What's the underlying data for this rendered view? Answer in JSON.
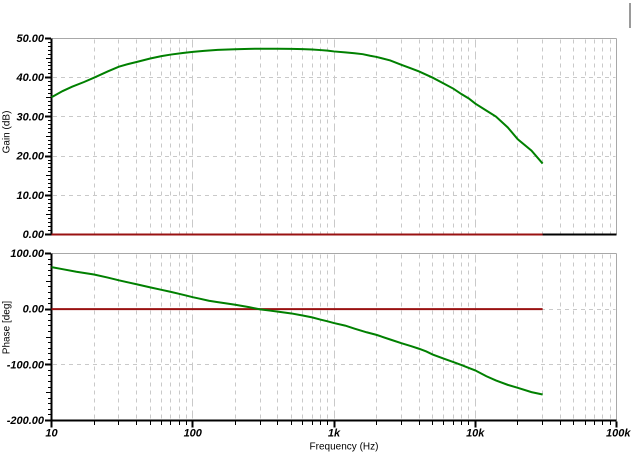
{
  "colors": {
    "background": "#ffffff",
    "curve": "#008000",
    "reference_line": "#991111",
    "grid": "#c9c9c9",
    "frame": "#a8a8a8",
    "axis": "#000000",
    "text": "#000000"
  },
  "window_fragment": {
    "present": true,
    "color": "#9a9a9a"
  },
  "chart_data": [
    {
      "type": "line",
      "title": "",
      "xlabel": "",
      "ylabel": "Gain (dB)",
      "x_scale": "log",
      "x_range": [
        10,
        100000
      ],
      "x_tick_labels": [
        "10",
        "100",
        "1k",
        "10k",
        "100k"
      ],
      "x_tick_values": [
        10,
        100,
        1000,
        10000,
        100000
      ],
      "ylim": [
        0,
        50
      ],
      "y_tick_labels": [
        "0.00",
        "10.00",
        "20.00",
        "30.00",
        "40.00",
        "50.00"
      ],
      "y_tick_values": [
        0,
        10,
        20,
        30,
        40,
        50
      ],
      "y_minor_step": 1,
      "y_medium_step": 5,
      "grid": "dashed",
      "legend": "none",
      "series": [
        {
          "name": "gain",
          "color": "#008000",
          "points": [
            [
              10,
              35.0
            ],
            [
              12,
              36.6
            ],
            [
              14,
              37.7
            ],
            [
              17,
              38.9
            ],
            [
              20,
              40.0
            ],
            [
              25,
              41.6
            ],
            [
              30,
              42.8
            ],
            [
              35,
              43.5
            ],
            [
              40,
              44.0
            ],
            [
              50,
              44.9
            ],
            [
              60,
              45.5
            ],
            [
              70,
              45.9
            ],
            [
              85,
              46.3
            ],
            [
              100,
              46.6
            ],
            [
              120,
              46.85
            ],
            [
              150,
              47.1
            ],
            [
              200,
              47.25
            ],
            [
              250,
              47.35
            ],
            [
              300,
              47.4
            ],
            [
              400,
              47.4
            ],
            [
              500,
              47.35
            ],
            [
              600,
              47.3
            ],
            [
              700,
              47.2
            ],
            [
              800,
              47.05
            ],
            [
              900,
              46.9
            ],
            [
              1000,
              46.7
            ],
            [
              1200,
              46.45
            ],
            [
              1400,
              46.25
            ],
            [
              1600,
              46.0
            ],
            [
              1800,
              45.6
            ],
            [
              2000,
              45.3
            ],
            [
              2500,
              44.4
            ],
            [
              3000,
              43.3
            ],
            [
              3500,
              42.4
            ],
            [
              4000,
              41.6
            ],
            [
              5000,
              40.0
            ],
            [
              6000,
              38.5
            ],
            [
              7000,
              37.2
            ],
            [
              8000,
              35.8
            ],
            [
              9000,
              34.7
            ],
            [
              10000,
              33.4
            ],
            [
              12000,
              31.6
            ],
            [
              14000,
              30.1
            ],
            [
              17000,
              27.3
            ],
            [
              20000,
              24.3
            ],
            [
              25000,
              21.4
            ],
            [
              30000,
              18.1
            ]
          ]
        },
        {
          "name": "zero-reference",
          "color": "#991111",
          "points": [
            [
              10,
              0
            ],
            [
              30000,
              0
            ]
          ]
        }
      ]
    },
    {
      "type": "line",
      "title": "",
      "xlabel": "Frequency (Hz)",
      "ylabel": "Phase [deg]",
      "x_scale": "log",
      "x_range": [
        10,
        100000
      ],
      "x_tick_labels": [
        "10",
        "100",
        "1k",
        "10k",
        "100k"
      ],
      "x_tick_values": [
        10,
        100,
        1000,
        10000,
        100000
      ],
      "ylim": [
        -200,
        100
      ],
      "y_tick_labels": [
        "-200.00",
        "-100.00",
        "0.00",
        "100.00"
      ],
      "y_tick_values": [
        -200,
        -100,
        0,
        100
      ],
      "y_minor_step": 10,
      "y_medium_step": 50,
      "grid": "dashed",
      "legend": "none",
      "series": [
        {
          "name": "phase",
          "color": "#008000",
          "points": [
            [
              10,
              75.5
            ],
            [
              12,
              71.8
            ],
            [
              15,
              67.2
            ],
            [
              20,
              62.3
            ],
            [
              25,
              56.8
            ],
            [
              30,
              51.8
            ],
            [
              35,
              48.0
            ],
            [
              40,
              44.8
            ],
            [
              50,
              39.2
            ],
            [
              60,
              34.8
            ],
            [
              70,
              31.0
            ],
            [
              80,
              27.6
            ],
            [
              90,
              24.4
            ],
            [
              100,
              21.5
            ],
            [
              110,
              19.3
            ],
            [
              130,
              15.2
            ],
            [
              150,
              12.7
            ],
            [
              170,
              10.6
            ],
            [
              200,
              7.9
            ],
            [
              250,
              3.6
            ],
            [
              300,
              -0.4
            ],
            [
              350,
              -2.5
            ],
            [
              400,
              -4.4
            ],
            [
              500,
              -7.7
            ],
            [
              600,
              -11.4
            ],
            [
              700,
              -14.7
            ],
            [
              800,
              -18.7
            ],
            [
              900,
              -21.8
            ],
            [
              1000,
              -25.0
            ],
            [
              1200,
              -29.5
            ],
            [
              1400,
              -35.0
            ],
            [
              1700,
              -41.5
            ],
            [
              2000,
              -46.2
            ],
            [
              2500,
              -54.5
            ],
            [
              3000,
              -61.2
            ],
            [
              3500,
              -66.3
            ],
            [
              4000,
              -71.1
            ],
            [
              4500,
              -76.0
            ],
            [
              5000,
              -81.5
            ],
            [
              6000,
              -89.0
            ],
            [
              7000,
              -95.0
            ],
            [
              8000,
              -100.4
            ],
            [
              9000,
              -105.5
            ],
            [
              10000,
              -110.0
            ],
            [
              12000,
              -120.5
            ],
            [
              14000,
              -128.0
            ],
            [
              17000,
              -136.0
            ],
            [
              20000,
              -141.2
            ],
            [
              25000,
              -149.0
            ],
            [
              30000,
              -153.3
            ]
          ]
        },
        {
          "name": "zero-reference",
          "color": "#991111",
          "points": [
            [
              10,
              0
            ],
            [
              30000,
              0
            ]
          ]
        }
      ]
    }
  ]
}
